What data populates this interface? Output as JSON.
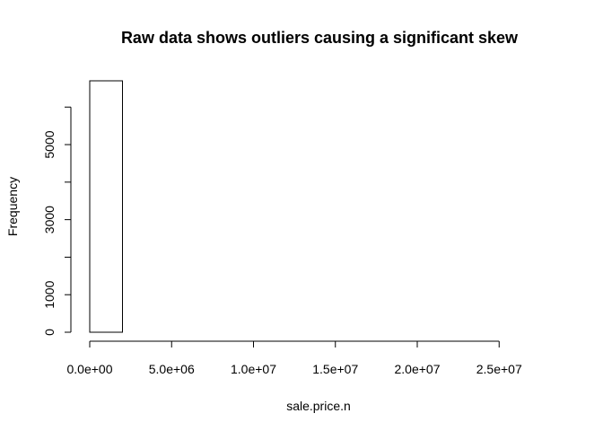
{
  "chart_data": {
    "type": "bar",
    "title": "Raw data shows outliers causing a significant skew",
    "xlabel": "sale.price.n",
    "ylabel": "Frequency",
    "bin_width": 2000000,
    "bins": [
      {
        "start": 0,
        "end": 2000000,
        "count": 6700
      },
      {
        "start": 2000000,
        "end": 4000000,
        "count": 0
      },
      {
        "start": 4000000,
        "end": 6000000,
        "count": 0
      },
      {
        "start": 6000000,
        "end": 8000000,
        "count": 0
      },
      {
        "start": 8000000,
        "end": 10000000,
        "count": 0
      },
      {
        "start": 10000000,
        "end": 12000000,
        "count": 0
      },
      {
        "start": 12000000,
        "end": 14000000,
        "count": 0
      },
      {
        "start": 14000000,
        "end": 16000000,
        "count": 0
      },
      {
        "start": 16000000,
        "end": 18000000,
        "count": 0
      },
      {
        "start": 18000000,
        "end": 20000000,
        "count": 0
      },
      {
        "start": 20000000,
        "end": 22000000,
        "count": 0
      },
      {
        "start": 22000000,
        "end": 24000000,
        "count": 0
      },
      {
        "start": 24000000,
        "end": 26000000,
        "count": 0
      },
      {
        "start": 26000000,
        "end": 28000000,
        "count": 0
      }
    ],
    "xlim": [
      0,
      28000000
    ],
    "ylim": [
      0,
      6700
    ],
    "x_ticks": [
      {
        "value": 0,
        "label": "0.0e+00"
      },
      {
        "value": 5000000,
        "label": "5.0e+06"
      },
      {
        "value": 10000000,
        "label": "1.0e+07"
      },
      {
        "value": 15000000,
        "label": "1.5e+07"
      },
      {
        "value": 20000000,
        "label": "2.0e+07"
      },
      {
        "value": 25000000,
        "label": "2.5e+07"
      }
    ],
    "y_ticks_major": [
      {
        "value": 0,
        "label": "0"
      },
      {
        "value": 1000,
        "label": "1000"
      },
      {
        "value": 3000,
        "label": "3000"
      },
      {
        "value": 5000,
        "label": "5000"
      }
    ],
    "y_ticks_minor": [
      2000,
      4000,
      6000
    ],
    "grid": false,
    "legend": "none",
    "bar_fill": "#ffffff",
    "bar_stroke": "#000000"
  }
}
